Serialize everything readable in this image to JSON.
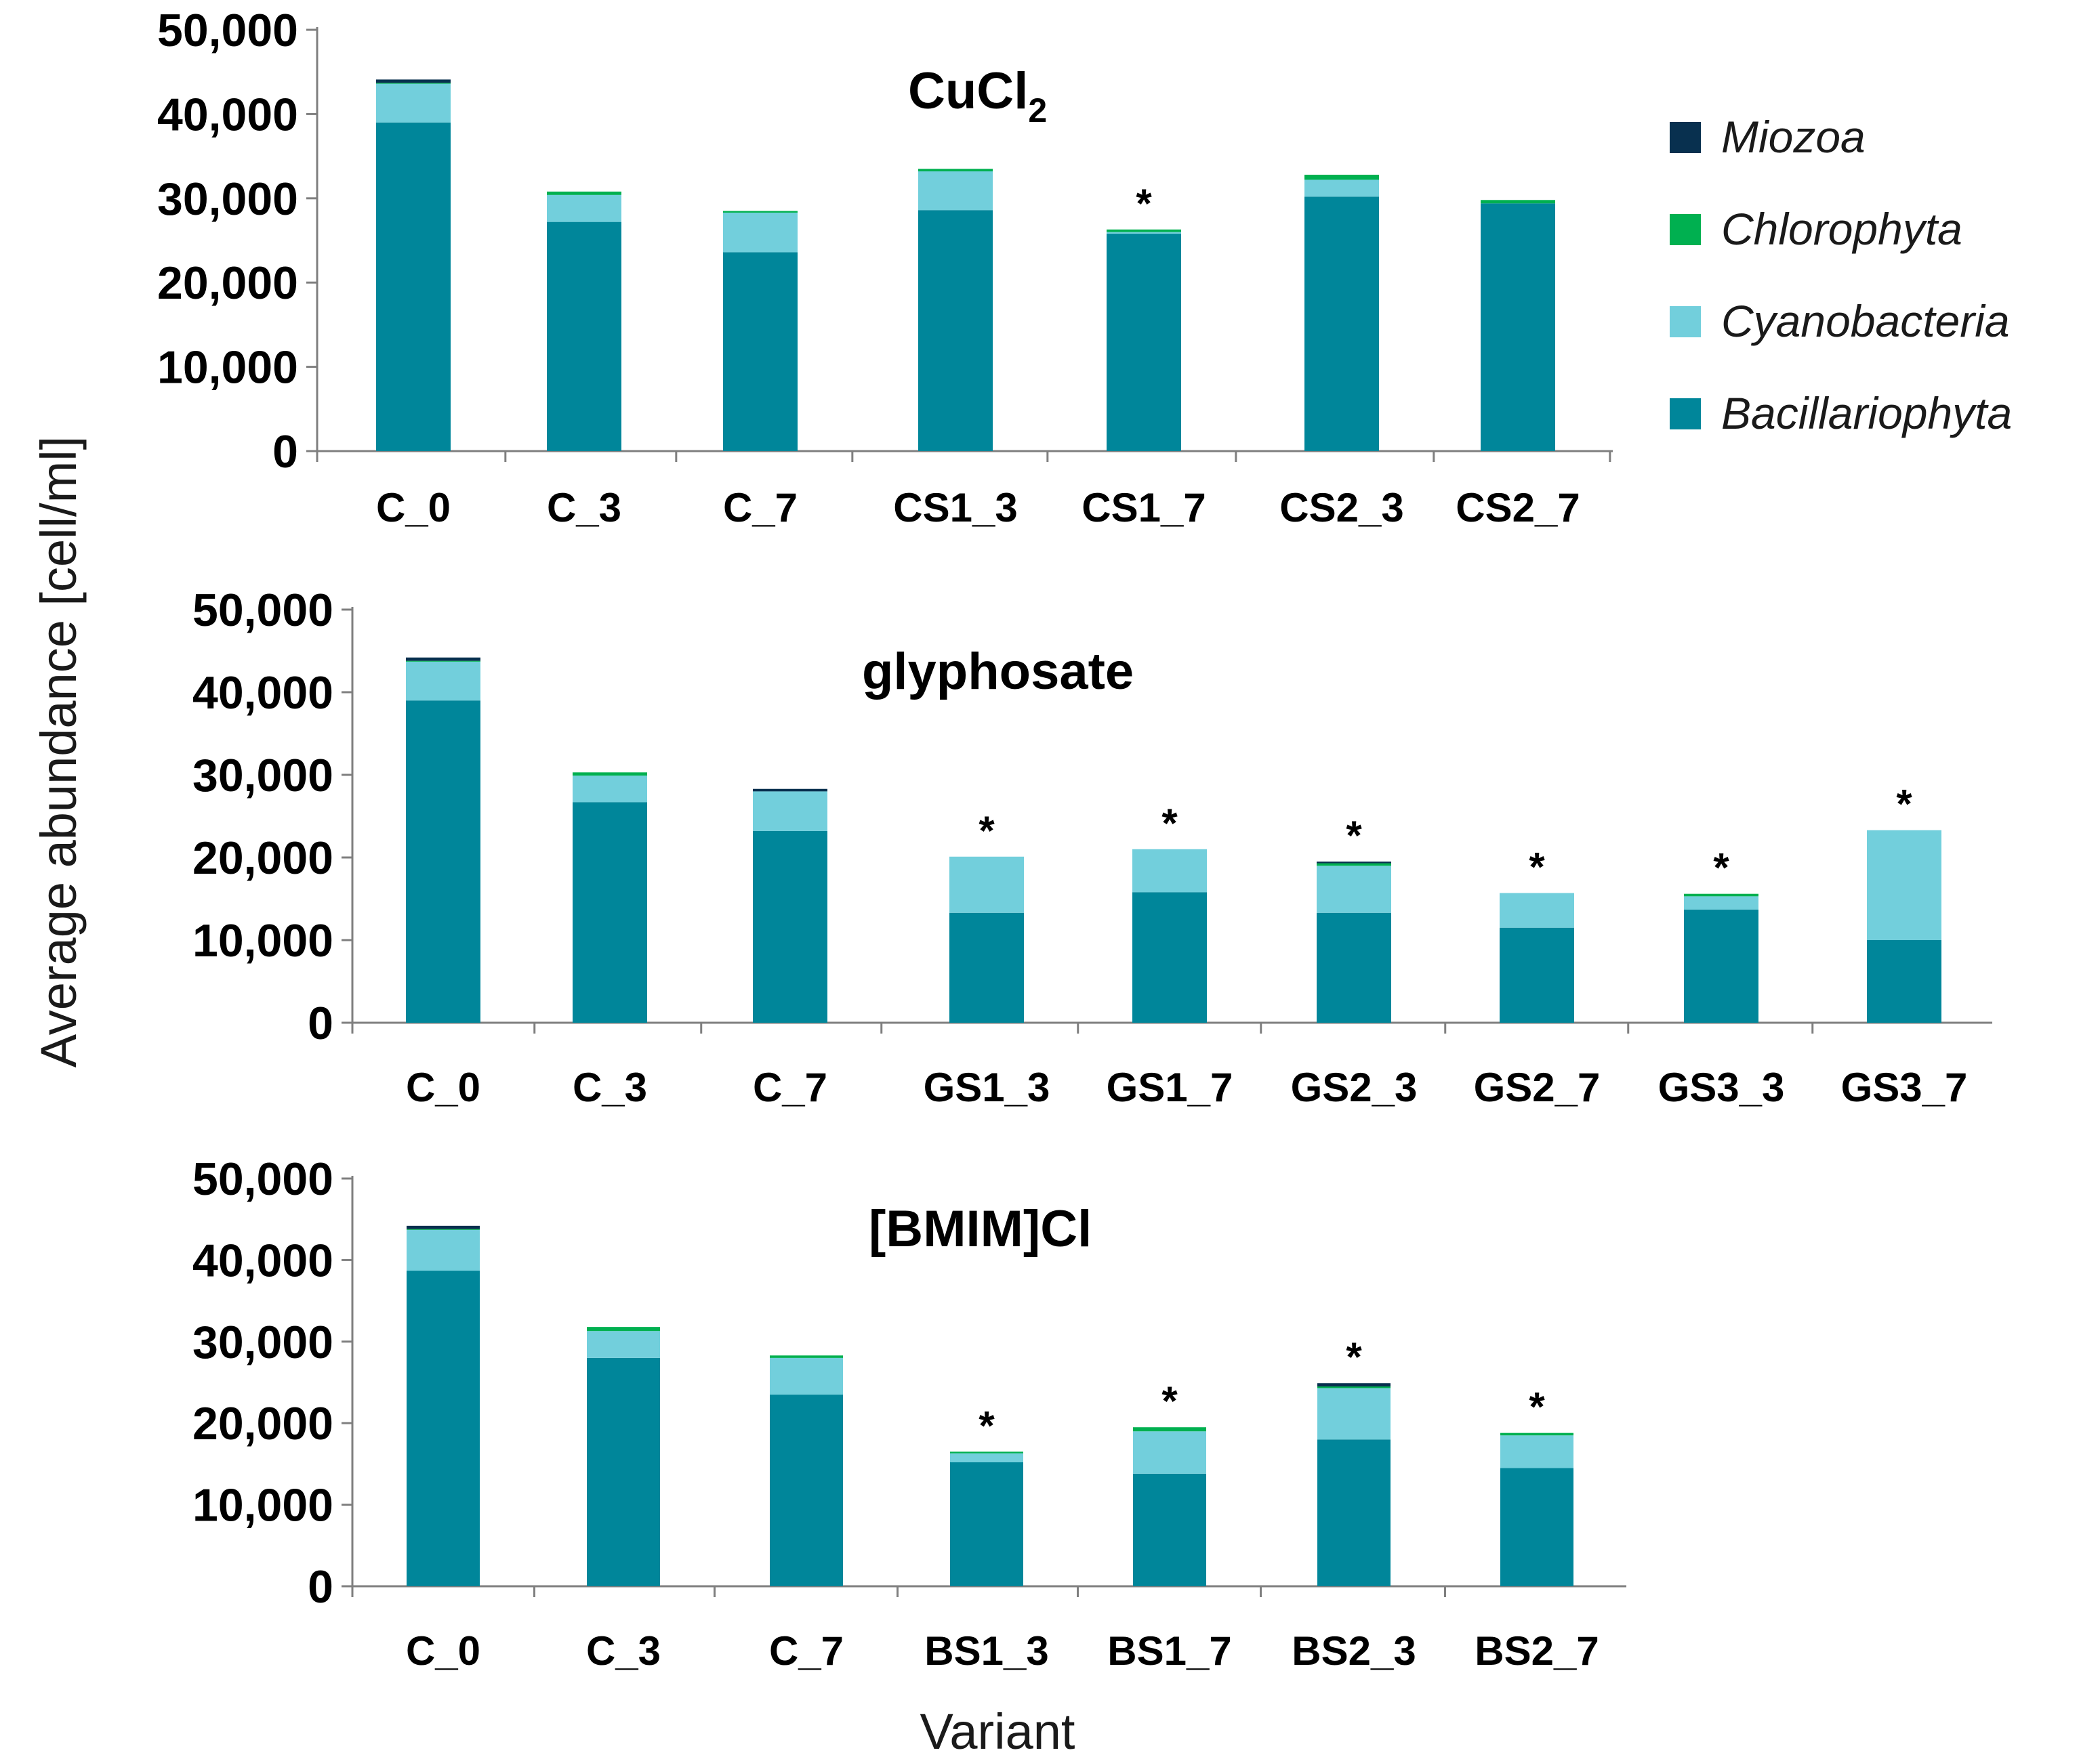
{
  "figure": {
    "y_axis_title": "Average abundance [cell/ml]",
    "x_axis_title": "Variant"
  },
  "legend": [
    {
      "name": "Miozoa",
      "color": "#08304f"
    },
    {
      "name": "Chlorophyta",
      "color": "#00b050"
    },
    {
      "name": "Cyanobacteria",
      "color": "#72cfdc"
    },
    {
      "name": "Bacillariophyta",
      "color": "#00869a"
    }
  ],
  "chart_data": [
    {
      "type": "bar",
      "stacked": true,
      "title": "CuCl",
      "title_subscript": "2",
      "xlabel": "Variant",
      "ylabel": "Average abundance [cell/ml]",
      "ylim": [
        0,
        50000
      ],
      "yticks": [
        0,
        10000,
        20000,
        30000,
        40000,
        50000
      ],
      "ytick_labels": [
        "0",
        "10,000",
        "20,000",
        "30,000",
        "40,000",
        "50,000"
      ],
      "categories": [
        "C_0",
        "C_3",
        "C_7",
        "CS1_3",
        "CS1_7",
        "CS2_3",
        "CS2_7"
      ],
      "significant": [
        false,
        false,
        false,
        false,
        true,
        false,
        false
      ],
      "series": [
        {
          "name": "Bacillariophyta",
          "values": [
            39000,
            27200,
            23600,
            28600,
            25800,
            30200,
            29400
          ]
        },
        {
          "name": "Cyanobacteria",
          "values": [
            4600,
            3200,
            4700,
            4600,
            200,
            2000,
            0
          ]
        },
        {
          "name": "Chlorophyta",
          "values": [
            100,
            400,
            200,
            300,
            300,
            600,
            400
          ]
        },
        {
          "name": "Miozoa",
          "values": [
            400,
            0,
            0,
            0,
            0,
            0,
            0
          ]
        }
      ]
    },
    {
      "type": "bar",
      "stacked": true,
      "title": "glyphosate",
      "xlabel": "Variant",
      "ylabel": "Average abundance [cell/ml]",
      "ylim": [
        0,
        50000
      ],
      "yticks": [
        0,
        10000,
        20000,
        30000,
        40000,
        50000
      ],
      "ytick_labels": [
        "0",
        "10,000",
        "20,000",
        "30,000",
        "40,000",
        "50,000"
      ],
      "categories": [
        "C_0",
        "C_3",
        "C_7",
        "GS1_3",
        "GS1_7",
        "GS2_3",
        "GS2_7",
        "GS3_3",
        "GS3_7"
      ],
      "significant": [
        false,
        false,
        false,
        true,
        true,
        true,
        true,
        true,
        true
      ],
      "series": [
        {
          "name": "Bacillariophyta",
          "values": [
            39000,
            26700,
            23200,
            13300,
            15800,
            13300,
            11500,
            13700,
            10000
          ]
        },
        {
          "name": "Cyanobacteria",
          "values": [
            4700,
            3200,
            4800,
            6800,
            5200,
            5700,
            4200,
            1600,
            13300
          ]
        },
        {
          "name": "Chlorophyta",
          "values": [
            100,
            400,
            0,
            0,
            0,
            300,
            0,
            300,
            0
          ]
        },
        {
          "name": "Miozoa",
          "values": [
            400,
            0,
            300,
            0,
            0,
            200,
            0,
            0,
            0
          ]
        }
      ]
    },
    {
      "type": "bar",
      "stacked": true,
      "title": "[BMIM]Cl",
      "xlabel": "Variant",
      "ylabel": "Average abundance [cell/ml]",
      "ylim": [
        0,
        50000
      ],
      "yticks": [
        0,
        10000,
        20000,
        30000,
        40000,
        50000
      ],
      "ytick_labels": [
        "0",
        "10,000",
        "20,000",
        "30,000",
        "40,000",
        "50,000"
      ],
      "categories": [
        "C_0",
        "C_3",
        "C_7",
        "BS1_3",
        "BS1_7",
        "BS2_3",
        "BS2_7"
      ],
      "significant": [
        false,
        false,
        false,
        true,
        true,
        true,
        true
      ],
      "series": [
        {
          "name": "Bacillariophyta",
          "values": [
            38700,
            28000,
            23500,
            15200,
            13800,
            18000,
            14500
          ]
        },
        {
          "name": "Cyanobacteria",
          "values": [
            5000,
            3300,
            4500,
            1100,
            5200,
            6300,
            4000
          ]
        },
        {
          "name": "Chlorophyta",
          "values": [
            100,
            500,
            300,
            200,
            500,
            200,
            300
          ]
        },
        {
          "name": "Miozoa",
          "values": [
            400,
            0,
            0,
            0,
            0,
            400,
            0
          ]
        }
      ]
    }
  ]
}
